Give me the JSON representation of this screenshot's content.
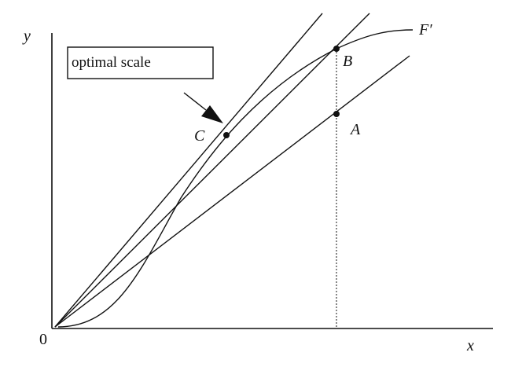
{
  "axes": {
    "y_label": "y",
    "x_label": "x",
    "origin_label": "0"
  },
  "curve": {
    "label": "F′"
  },
  "points": {
    "a": "A",
    "b": "B",
    "c": "C"
  },
  "annotation": {
    "text": "optimal scale"
  },
  "colors": {
    "ink": "#111111",
    "background": "#ffffff"
  }
}
